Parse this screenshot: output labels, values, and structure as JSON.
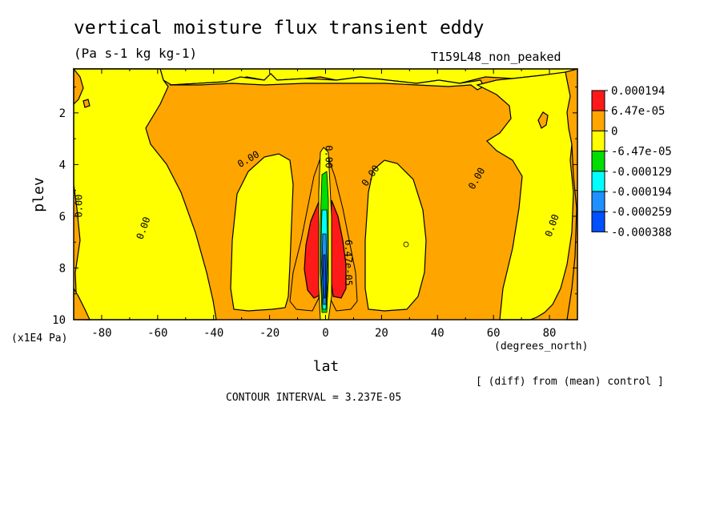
{
  "header": {
    "title": "vertical moisture flux transient eddy",
    "units": "(Pa s-1 kg kg-1)",
    "run_name": "T159L48_non_peaked"
  },
  "footer": {
    "diff_note": "[ (diff) from (mean) control ]",
    "contour_interval": "CONTOUR INTERVAL = 3.237E-05"
  },
  "chart_data": {
    "type": "heatmap",
    "title": "vertical moisture flux transient eddy",
    "subtitle": "(Pa s-1 kg kg-1)",
    "xlabel": "lat",
    "x_units": "(degrees_north)",
    "ylabel": "plev",
    "y_units": "(x1E4 Pa)",
    "xlim": [
      -90,
      90
    ],
    "ylim": [
      10,
      0.3
    ],
    "x_ticks": [
      "-80",
      "-60",
      "-40",
      "-20",
      "0",
      "20",
      "40",
      "60",
      "80"
    ],
    "y_ticks": [
      "2",
      "4",
      "6",
      "8",
      "10"
    ],
    "legend": {
      "position": "right",
      "levels": [
        "0.000194",
        "6.47e-05",
        "0",
        "-6.47e-05",
        "-0.000129",
        "-0.000194",
        "-0.000259",
        "-0.000388"
      ],
      "colors": [
        "#ff1a1a",
        "#ffa500",
        "#ffff00",
        "#00dd00",
        "#00ffff",
        "#1f90ff",
        "#0050ff"
      ]
    },
    "contour_labels": [
      "0.00",
      "6.47e-05"
    ],
    "contour_interval": "3.237E-05",
    "colors": {
      "positive_strong": "#ff1a1a",
      "positive": "#ffa500",
      "near_zero": "#ffff00",
      "negative": "#00dd00",
      "negative_more": "#00ffff",
      "negative_strong": "#1f90ff",
      "negative_max": "#0050ff"
    }
  }
}
